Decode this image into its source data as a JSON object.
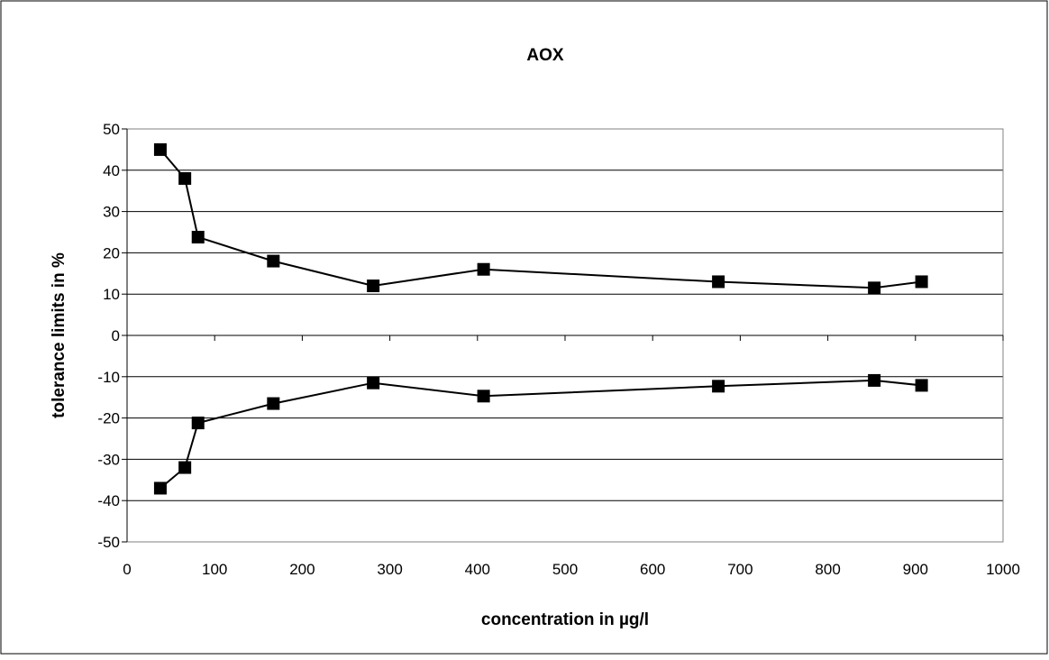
{
  "chart_data": {
    "type": "line",
    "title": "AOX",
    "xlabel": "concentration in µg/l",
    "ylabel": "tolerance limits in %",
    "xlim": [
      0,
      1000
    ],
    "ylim": [
      -50,
      50
    ],
    "x_ticks": [
      "0",
      "100",
      "200",
      "300",
      "400",
      "500",
      "600",
      "700",
      "800",
      "900",
      "1000"
    ],
    "y_ticks": [
      "50",
      "40",
      "30",
      "20",
      "10",
      "0",
      "-10",
      "-20",
      "-30",
      "-40",
      "-50"
    ],
    "grid": "horizontal",
    "legend": "none",
    "marker": "square",
    "line_color": "#000000",
    "series": [
      {
        "x": [
          38,
          66,
          81,
          167,
          281,
          407,
          675,
          853,
          907
        ],
        "y": [
          45,
          38,
          23.8,
          18,
          12,
          16,
          13,
          11.5,
          13
        ]
      },
      {
        "x": [
          38,
          66,
          81,
          167,
          281,
          407,
          675,
          853,
          907
        ],
        "y": [
          -37,
          -32,
          -21.2,
          -16.5,
          -11.5,
          -14.7,
          -12.3,
          -10.9,
          -12.1
        ]
      }
    ]
  }
}
